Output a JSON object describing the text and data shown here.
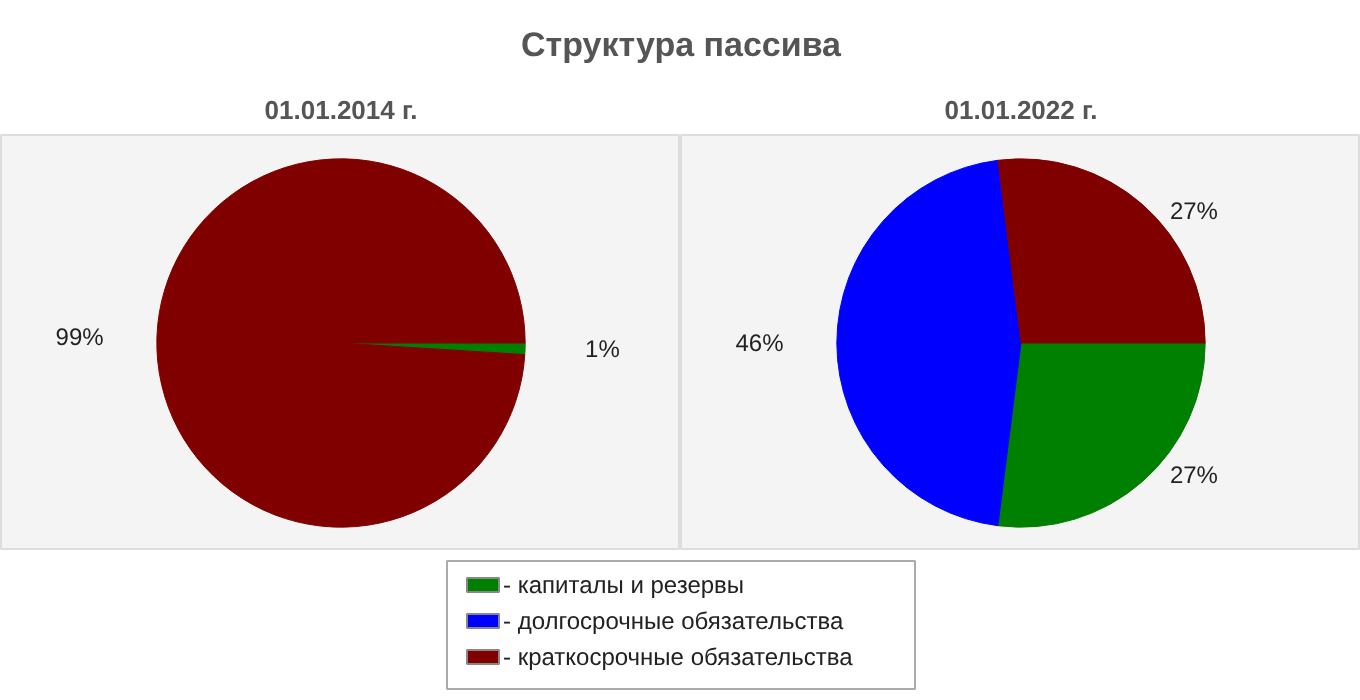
{
  "chart_data": [
    {
      "type": "pie",
      "title": "Структура пассива",
      "subtitle": "01.01.2014 г.",
      "categories": [
        "- капиталы и резервы",
        "- долгосрочные обязательства",
        "- краткосрочные обязательства"
      ],
      "values": [
        1,
        0,
        99
      ],
      "value_labels": [
        "1%",
        null,
        "99%"
      ],
      "colors": [
        "#008000",
        "#0000ff",
        "#800000"
      ],
      "legend": "bottom"
    },
    {
      "type": "pie",
      "subtitle": "01.01.2022 г.",
      "categories": [
        null,
        null,
        null
      ],
      "values": [
        27,
        46,
        27
      ],
      "value_labels": [
        "27%",
        "46%",
        "27%"
      ],
      "colors": [
        "#008000",
        "#0000ff",
        "#800000"
      ]
    }
  ]
}
